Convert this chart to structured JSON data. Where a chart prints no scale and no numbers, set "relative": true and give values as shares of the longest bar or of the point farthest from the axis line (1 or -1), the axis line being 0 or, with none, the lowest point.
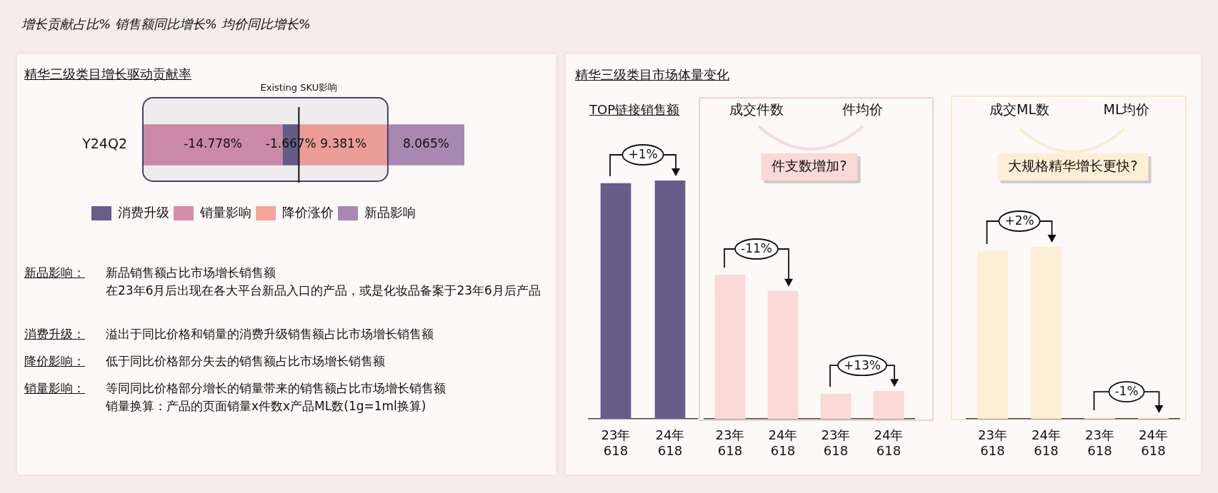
{
  "chart_data": [
    {
      "type": "other",
      "title": "增长贡献占比%  销售额同比增长%  均价同比增长%"
    },
    {
      "type": "bar",
      "orientation": "horizontal",
      "stacked": true,
      "title": "精华三级类目增长驱动贡献率",
      "categories": [
        "Y24Q2"
      ],
      "series": [
        {
          "name": "消费升级",
          "color": "#675e8a",
          "values": [
            -1.667
          ],
          "value_labels": [
            "-1.667%"
          ]
        },
        {
          "name": "销量影响",
          "color": "#d48fab",
          "values": [
            -14.778
          ],
          "value_labels": [
            "-14.778%"
          ]
        },
        {
          "name": "降价涨价",
          "color": "#f7a39a",
          "values": [
            9.381
          ],
          "value_labels": [
            "9.381%"
          ]
        },
        {
          "name": "新品影响",
          "color": "#a887b2",
          "values": [
            8.065
          ],
          "value_labels": [
            "8.065%"
          ]
        }
      ],
      "xlim": [
        -16.445,
        17.446
      ],
      "tick_labels": "y",
      "bands": [
        {
          "axis": "x",
          "from": -16.445,
          "to": 9.381,
          "label": "Existing SKU影响"
        }
      ],
      "legend": "bottom"
    },
    {
      "type": "other",
      "title": "新品影响：",
      "annotations": [
        "新品销售额占比市场增长销售额",
        "在23年6月后出现在各大平台新品入口的产品，或是化妆品备案于23年6月后产品"
      ]
    },
    {
      "type": "other",
      "title": "消费升级：",
      "annotations": [
        "溢出于同比价格和销量的消费升级销售额占比市场增长销售额"
      ]
    },
    {
      "type": "other",
      "title": "降价影响：",
      "annotations": [
        "低于同比价格部分失去的销售额占比市场增长销售额"
      ]
    },
    {
      "type": "other",
      "title": "销量影响：",
      "annotations": [
        "等同同比价格部分增长的销量带来的销售额占比市场增长销售额",
        "销量换算：产品的页面销量x件数x产品ML数(1g=1ml换算)"
      ]
    },
    {
      "type": "other",
      "title": "精华三级类目市场体量变化"
    },
    {
      "type": "bar",
      "relative": true,
      "title": "TOP链接销售额",
      "categories": [
        "23年\n618",
        "24年\n618"
      ],
      "series": [
        {
          "color": "#685c8b",
          "values": [
            0.988,
            1
          ]
        }
      ],
      "annotations": [
        "+1%"
      ]
    },
    {
      "type": "bar",
      "relative": true,
      "categories": [
        "23年\n618",
        "24年\n618",
        "23年\n618",
        "24年\n618"
      ],
      "series": [
        {
          "color": "#fbd9d6",
          "values": [
            1,
            0.887,
            null,
            null
          ]
        },
        {
          "color": "#fbd9d6",
          "values": [
            null,
            null,
            0.172,
            0.192
          ]
        }
      ],
      "annotations": [
        "成交件数",
        "件均价",
        "件支数增加?",
        "-11%",
        "+13%"
      ]
    },
    {
      "type": "bar",
      "relative": true,
      "categories": [
        "23年\n618",
        "24年\n618",
        "23年\n618",
        "24年\n618"
      ],
      "series": [
        {
          "color": "#fdefd5",
          "values": [
            0.975,
            1,
            null,
            null
          ]
        },
        {
          "color": "#fdefd5",
          "values": [
            null,
            null,
            0.008,
            0.008
          ]
        }
      ],
      "annotations": [
        "成交ML数",
        "ML均价",
        "大规格精华增长更快?",
        "+2%",
        "-1%"
      ]
    }
  ]
}
